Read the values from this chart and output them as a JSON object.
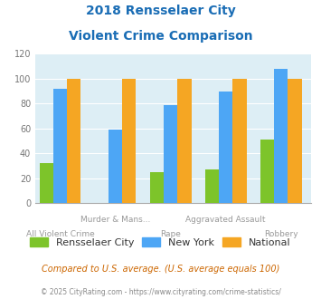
{
  "title_line1": "2018 Rensselaer City",
  "title_line2": "Violent Crime Comparison",
  "categories": [
    "All Violent Crime",
    "Murder & Mans...",
    "Rape",
    "Aggravated Assault",
    "Robbery"
  ],
  "rensselaer": [
    32,
    0,
    25,
    27,
    51
  ],
  "new_york": [
    92,
    59,
    79,
    90,
    108
  ],
  "national": [
    100,
    100,
    100,
    100,
    100
  ],
  "color_rensselaer": "#7dc42a",
  "color_new_york": "#4da6f5",
  "color_national": "#f5a623",
  "ylim": [
    0,
    120
  ],
  "yticks": [
    0,
    20,
    40,
    60,
    80,
    100,
    120
  ],
  "bg_color": "#ddeef5",
  "footer_text": "Compared to U.S. average. (U.S. average equals 100)",
  "copyright_text": "© 2025 CityRating.com - https://www.cityrating.com/crime-statistics/",
  "title_color": "#1a6db5",
  "footer_color": "#cc6600",
  "copyright_color": "#888888",
  "legend_labels": [
    "Rensselaer City",
    "New York",
    "National"
  ],
  "bar_width": 0.25,
  "group_positions": [
    1,
    2,
    3,
    4,
    5
  ]
}
